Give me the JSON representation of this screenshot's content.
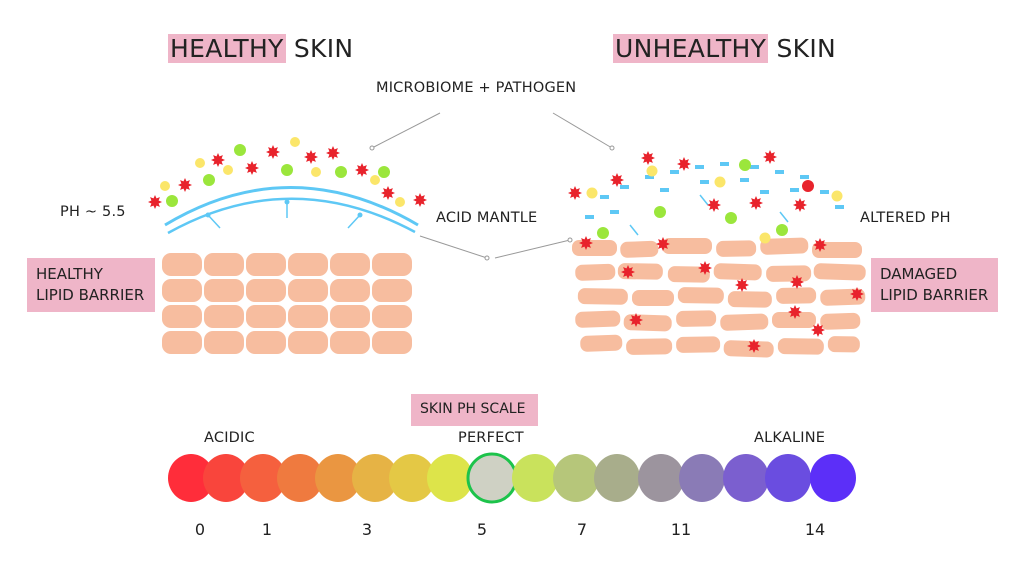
{
  "healthy": {
    "title_highlight": "HEALTHY",
    "title_rest": "SKIN",
    "ph_label": "PH ~ 5.5",
    "barrier_label_line1": "HEALTHY",
    "barrier_label_line2": "LIPID BARRIER"
  },
  "unhealthy": {
    "title_highlight": "UNHEALTHY",
    "title_rest": "SKIN",
    "ph_label": "ALTERED PH",
    "barrier_label_line1": "DAMAGED",
    "barrier_label_line2": "LIPID BARRIER"
  },
  "center_labels": {
    "microbiome": "MICROBIOME + PATHOGEN",
    "acid_mantle": "ACID MANTLE"
  },
  "ph_scale": {
    "title": "SKIN PH SCALE",
    "acidic_label": "ACIDIC",
    "perfect_label": "PERFECT",
    "alkaline_label": "ALKALINE",
    "numbers": [
      "0",
      "1",
      "3",
      "5",
      "7",
      "11",
      "14"
    ],
    "selected_index": 8,
    "selected_border_color": "#1dc34b",
    "colors": [
      "#ff2d3a",
      "#f9453c",
      "#f5603e",
      "#ef7a3f",
      "#ea9641",
      "#e6b345",
      "#e4c845",
      "#dde44a",
      "#cfd1c4",
      "#c9e25c",
      "#b6c67a",
      "#a8ad8b",
      "#9c949e",
      "#8a7bb6",
      "#7b5fcf",
      "#6a4de0",
      "#5c2ff8"
    ]
  },
  "colors": {
    "highlight_pink": "#efb5c8",
    "lipid": "#f7bd9f",
    "acid_mantle": "#5ec8f5",
    "pathogen_red": "#e8232c",
    "microbe_yellow": "#fbe66a",
    "microbe_green": "#9be63c"
  }
}
